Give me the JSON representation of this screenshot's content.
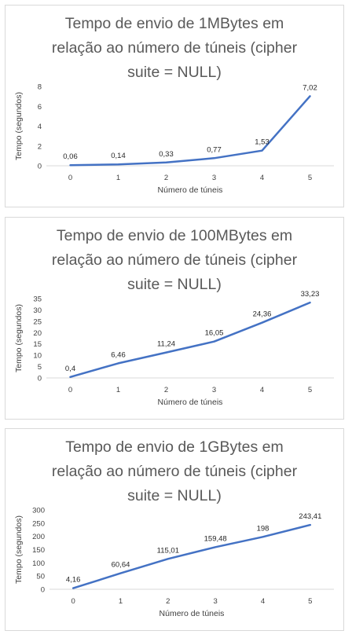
{
  "chart_data": [
    {
      "type": "line",
      "title": "Tempo de envio de 1MBytes em relação ao número de túneis (cipher suite = NULL)",
      "title_lines": [
        "Tempo de envio de 1MBytes em",
        "relação ao número de túneis (cipher",
        "suite = NULL)"
      ],
      "xlabel": "Número de túneis",
      "ylabel": "Tempo (segundos)",
      "x": [
        0,
        1,
        2,
        3,
        4,
        5
      ],
      "x_tick_labels": [
        "0",
        "1",
        "2",
        "3",
        "4",
        "5"
      ],
      "values": [
        0.06,
        0.14,
        0.33,
        0.77,
        1.53,
        7.02
      ],
      "data_labels": [
        "0,06",
        "0,14",
        "0,33",
        "0,77",
        "1,53",
        "7,02"
      ],
      "ylim": [
        0,
        8
      ],
      "yticks": [
        0,
        2,
        4,
        6,
        8
      ],
      "y_tick_labels": [
        "0",
        "2",
        "4",
        "6",
        "8"
      ],
      "grid": false,
      "line_color": "#4472c4"
    },
    {
      "type": "line",
      "title": "Tempo de envio de 100MBytes em relação ao número de túneis (cipher suite = NULL)",
      "title_lines": [
        "Tempo de envio de 100MBytes em",
        "relação ao número de túneis (cipher",
        "suite = NULL)"
      ],
      "xlabel": "Número de túneis",
      "ylabel": "Tempo (segundos)",
      "x": [
        0,
        1,
        2,
        3,
        4,
        5
      ],
      "x_tick_labels": [
        "0",
        "1",
        "2",
        "3",
        "4",
        "5"
      ],
      "values": [
        0.4,
        6.46,
        11.24,
        16.05,
        24.36,
        33.23
      ],
      "data_labels": [
        "0,4",
        "6,46",
        "11,24",
        "16,05",
        "24,36",
        "33,23"
      ],
      "ylim": [
        0,
        35
      ],
      "yticks": [
        0,
        5,
        10,
        15,
        20,
        25,
        30,
        35
      ],
      "y_tick_labels": [
        "0",
        "5",
        "10",
        "15",
        "20",
        "25",
        "30",
        "35"
      ],
      "grid": false,
      "line_color": "#4472c4"
    },
    {
      "type": "line",
      "title": "Tempo de envio de 1GBytes em relação ao número de túneis (cipher suite = NULL)",
      "title_lines": [
        "Tempo de envio de 1GBytes em",
        "relação ao número de túneis (cipher",
        "suite = NULL)"
      ],
      "xlabel": "Número de túneis",
      "ylabel": "Tempo (segundos)",
      "x": [
        0,
        1,
        2,
        3,
        4,
        5
      ],
      "x_tick_labels": [
        "0",
        "1",
        "2",
        "3",
        "4",
        "5"
      ],
      "values": [
        4.16,
        60.64,
        115.01,
        159.48,
        198,
        243.41
      ],
      "data_labels": [
        "4,16",
        "60,64",
        "115,01",
        "159,48",
        "198",
        "243,41"
      ],
      "ylim": [
        0,
        300
      ],
      "yticks": [
        0,
        50,
        100,
        150,
        200,
        250,
        300
      ],
      "y_tick_labels": [
        "0",
        "50",
        "100",
        "150",
        "200",
        "250",
        "300"
      ],
      "grid": false,
      "line_color": "#4472c4"
    }
  ]
}
